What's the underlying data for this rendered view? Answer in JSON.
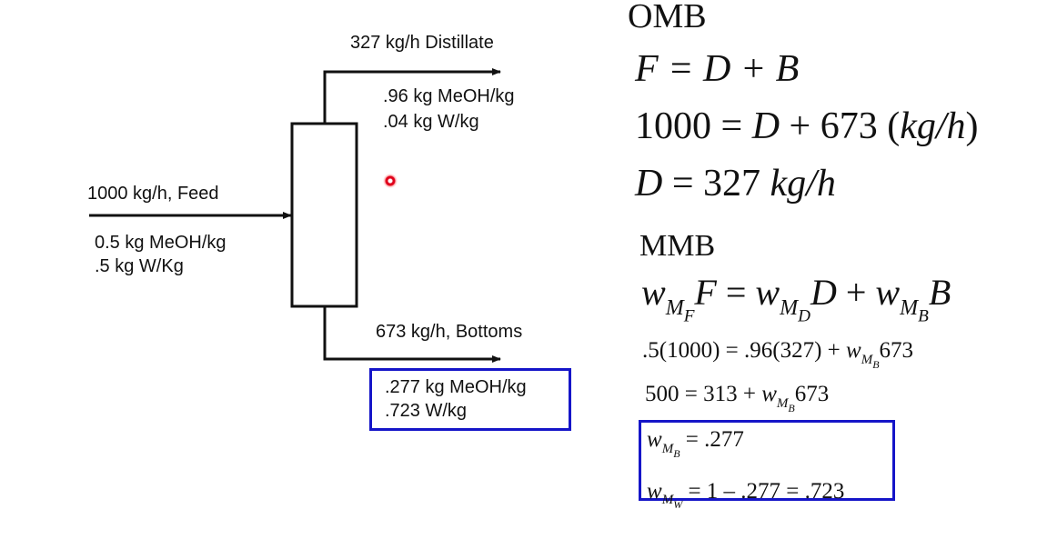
{
  "diagram": {
    "distillate": {
      "label": "327 kg/h Distillate",
      "comp1": ".96 kg MeOH/kg",
      "comp2": ".04 kg W/kg"
    },
    "feed": {
      "label": "1000 kg/h, Feed",
      "comp1": "0.5 kg MeOH/kg",
      "comp2": ".5 kg W/Kg"
    },
    "bottoms": {
      "label": "673 kg/h, Bottoms",
      "comp1": ".277 kg MeOH/kg",
      "comp2": ".723 W/kg"
    },
    "highlight_color": "#1515c8"
  },
  "omb": {
    "title": "OMB",
    "eq1": {
      "lhs": "F",
      "rhs": " = D + B"
    },
    "eq2": {
      "num": "1000 = ",
      "var": "D",
      "rest": " + 673 (",
      "unit": "kg/h",
      "close": ")"
    },
    "eq3": {
      "var": "D",
      "rest": " = 327 ",
      "unit": "kg/h"
    }
  },
  "mmb": {
    "title": "MMB",
    "eq1": {
      "w": "w",
      "M": "M",
      "F_sub": "F",
      "F": "F",
      "eq": " = ",
      "D_sub": "D",
      "D": "D",
      "plus": " + ",
      "B_sub": "B",
      "B": "B"
    },
    "eq2": {
      "lhs": ".5(1000) = .96(327) + ",
      "w": "w",
      "M": "M",
      "sub": "B",
      "rest": "673"
    },
    "eq3": {
      "lhs": "500 = 313 + ",
      "w": "w",
      "M": "M",
      "sub": "B",
      "rest": "673"
    },
    "result1": {
      "w": "w",
      "M": "M",
      "sub": "B",
      "rest": " = .277"
    },
    "result2": {
      "w": "w",
      "M": "M",
      "sub": "W",
      "rest": " = 1 – .277 = .723"
    }
  },
  "pointer": {
    "icon": "laser-pointer-icon",
    "color": "#e0001a"
  }
}
